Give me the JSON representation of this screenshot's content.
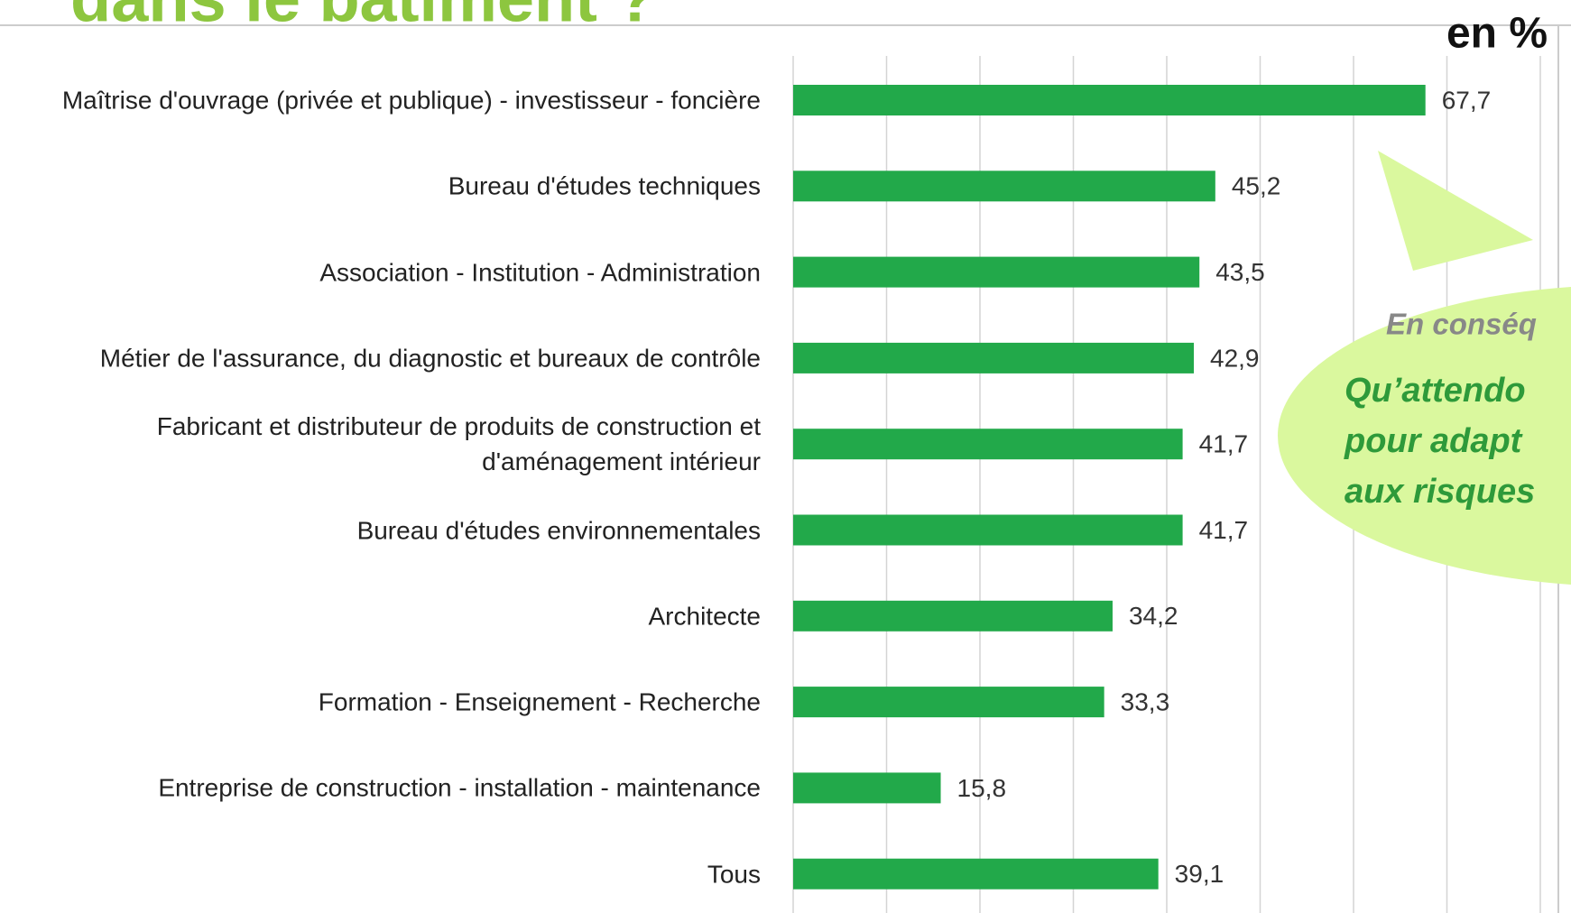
{
  "chart_data": {
    "type": "barh",
    "title": "dans le bâtiment ?",
    "unit_label": "en %",
    "categories": [
      "Maîtrise d'ouvrage (privée et publique) - investisseur - foncière",
      "Bureau d'études techniques",
      "Association - Institution - Administration",
      "Métier de l'assurance, du diagnostic et bureaux de contrôle",
      "Fabricant et distributeur de produits de construction et d'aménagement intérieur",
      "Bureau d'études environnementales",
      "Architecte",
      "Formation - Enseignement - Recherche",
      "Entreprise de construction - installation - maintenance",
      "Tous"
    ],
    "values": [
      67.7,
      45.2,
      43.5,
      42.9,
      41.7,
      41.7,
      34.2,
      33.3,
      15.8,
      39.1
    ],
    "value_labels": [
      "67,7",
      "45,2",
      "43,5",
      "42,9",
      "41,7",
      "41,7",
      "34,2",
      "33,3",
      "15,8",
      "39,1"
    ],
    "color": "#22a94a",
    "xlim": [
      0,
      80
    ],
    "xticks": [
      0,
      10,
      20,
      30,
      40,
      50,
      60,
      70,
      80
    ],
    "grid": true,
    "annotation": {
      "subtitle": "En conséq",
      "lines": [
        "Qu’attendo",
        "pour adapt",
        "aux risques"
      ]
    }
  }
}
